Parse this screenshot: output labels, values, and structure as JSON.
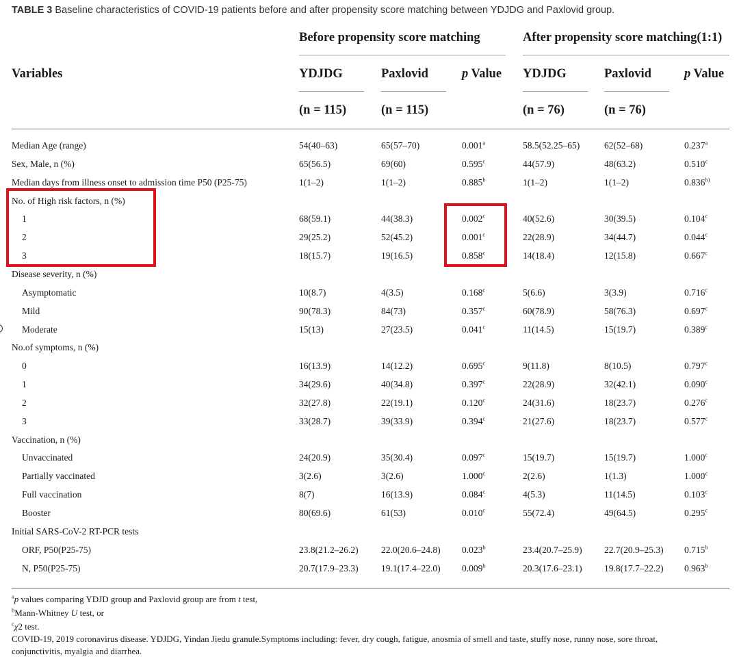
{
  "caption": {
    "label": "TABLE 3",
    "text": "Baseline characteristics of COVID-19 patients before and after propensity score matching between YDJDG and Paxlovid group."
  },
  "headers": {
    "before_group": "Before propensity score matching",
    "after_group": "After propensity score matching(1:1)",
    "variables": "Variables",
    "ydjdg": "YDJDG",
    "paxlovid": "Paxlovid",
    "p_italic": "p",
    "p_rest": "Value",
    "n_before_ydjdg": "(n = 115)",
    "n_before_pax": "(n = 115)",
    "n_after_ydjdg": "(n = 76)",
    "n_after_pax": "(n = 76)"
  },
  "rows": [
    {
      "label": "Median Age (range)",
      "indent": false,
      "cells": [
        "54(40–63)",
        "65(57–70)",
        "0.001",
        "a",
        "58.5(52.25–65)",
        "62(52–68)",
        "0.237",
        "a"
      ]
    },
    {
      "label": "Sex, Male, n (%)",
      "indent": false,
      "cells": [
        "65(56.5)",
        "69(60)",
        "0.595",
        "c",
        "44(57.9)",
        "48(63.2)",
        "0.510",
        "c"
      ]
    },
    {
      "label": "Median days from illness onset to admission time P50 (P25-75)",
      "indent": false,
      "cells": [
        "1(1–2)",
        "1(1–2)",
        "0.885",
        "b",
        "1(1–2)",
        "1(1–2)",
        "0.836",
        "b)"
      ]
    },
    {
      "label": "No. of High risk factors, n (%)",
      "indent": false,
      "cells": []
    },
    {
      "label": "1",
      "indent": true,
      "cells": [
        "68(59.1)",
        "44(38.3)",
        "0.002",
        "c",
        "40(52.6)",
        "30(39.5)",
        "0.104",
        "c"
      ]
    },
    {
      "label": "2",
      "indent": true,
      "cells": [
        "29(25.2)",
        "52(45.2)",
        "0.001",
        "c",
        "22(28.9)",
        "34(44.7)",
        "0.044",
        "c"
      ]
    },
    {
      "label": "3",
      "indent": true,
      "cells": [
        "18(15.7)",
        "19(16.5)",
        "0.858",
        "c",
        "14(18.4)",
        "12(15.8)",
        "0.667",
        "c"
      ]
    },
    {
      "label": "Disease severity, n (%)",
      "indent": false,
      "cells": []
    },
    {
      "label": "Asymptomatic",
      "indent": true,
      "cells": [
        "10(8.7)",
        "4(3.5)",
        "0.168",
        "c",
        "5(6.6)",
        "3(3.9)",
        "0.716",
        "c"
      ]
    },
    {
      "label": "Mild",
      "indent": true,
      "cells": [
        "90(78.3)",
        "84(73)",
        "0.357",
        "c",
        "60(78.9)",
        "58(76.3)",
        "0.697",
        "c"
      ]
    },
    {
      "label": "Moderate",
      "indent": true,
      "cells": [
        "15(13)",
        "27(23.5)",
        "0.041",
        "c",
        "11(14.5)",
        "15(19.7)",
        "0.389",
        "c"
      ]
    },
    {
      "label": "No.of symptoms, n (%)",
      "indent": false,
      "cells": []
    },
    {
      "label": "0",
      "indent": true,
      "cells": [
        "16(13.9)",
        "14(12.2)",
        "0.695",
        "c",
        "9(11.8)",
        "8(10.5)",
        "0.797",
        "c"
      ]
    },
    {
      "label": "1",
      "indent": true,
      "cells": [
        "34(29.6)",
        "40(34.8)",
        "0.397",
        "c",
        "22(28.9)",
        "32(42.1)",
        "0.090",
        "c"
      ]
    },
    {
      "label": "2",
      "indent": true,
      "cells": [
        "32(27.8)",
        "22(19.1)",
        "0.120",
        "c",
        "24(31.6)",
        "18(23.7)",
        "0.276",
        "c"
      ]
    },
    {
      "label": "3",
      "indent": true,
      "cells": [
        "33(28.7)",
        "39(33.9)",
        "0.394",
        "c",
        "21(27.6)",
        "18(23.7)",
        "0.577",
        "c"
      ]
    },
    {
      "label": "Vaccination, n (%)",
      "indent": false,
      "cells": []
    },
    {
      "label": "Unvaccinated",
      "indent": true,
      "cells": [
        "24(20.9)",
        "35(30.4)",
        "0.097",
        "c",
        "15(19.7)",
        "15(19.7)",
        "1.000",
        "c"
      ]
    },
    {
      "label": "Partially vaccinated",
      "indent": true,
      "cells": [
        "3(2.6)",
        "3(2.6)",
        "1.000",
        "c",
        "2(2.6)",
        "1(1.3)",
        "1.000",
        "c"
      ]
    },
    {
      "label": "Full vaccination",
      "indent": true,
      "cells": [
        "8(7)",
        "16(13.9)",
        "0.084",
        "c",
        "4(5.3)",
        "11(14.5)",
        "0.103",
        "c"
      ]
    },
    {
      "label": "Booster",
      "indent": true,
      "cells": [
        "80(69.6)",
        "61(53)",
        "0.010",
        "c",
        "55(72.4)",
        "49(64.5)",
        "0.295",
        "c"
      ]
    },
    {
      "label": "Initial SARS-CoV-2 RT-PCR tests",
      "indent": false,
      "cells": []
    },
    {
      "label": "ORF, P50(P25-75)",
      "indent": true,
      "cells": [
        "23.8(21.2–26.2)",
        "22.0(20.6–24.8)",
        "0.023",
        "b",
        "23.4(20.7–25.9)",
        "22.7(20.9–25.3)",
        "0.715",
        "b"
      ]
    },
    {
      "label": "N, P50(P25-75)",
      "indent": true,
      "cells": [
        "20.7(17.9–23.3)",
        "19.1(17.4–22.0)",
        "0.009",
        "b",
        "20.3(17.6–23.1)",
        "19.8(17.7–22.2)",
        "0.963",
        "b"
      ]
    }
  ],
  "footnotes": {
    "a_sup": "a",
    "a_italic": "p",
    "a_text": " values comparing YDJD group and Paxlovid group are from ",
    "a_italic2": "t",
    "a_end": " test,",
    "b_sup": "b",
    "b_text": "Mann-Whitney ",
    "b_italic": "U",
    "b_end": " test, or",
    "c_sup": "c",
    "c_italic": "χ",
    "c_end": "2 test.",
    "abbrev_line1": "COVID-19, 2019 coronavirus disease. YDJDG, Yindan Jiedu granule.Symptoms including: fever, dry cough, fatigue, anosmia of smell and taste, stuffy nose, runny nose, sore throat,",
    "abbrev_line2": "conjunctivitis, myalgia and diarrhea."
  },
  "highlight_color": "#e0121b"
}
